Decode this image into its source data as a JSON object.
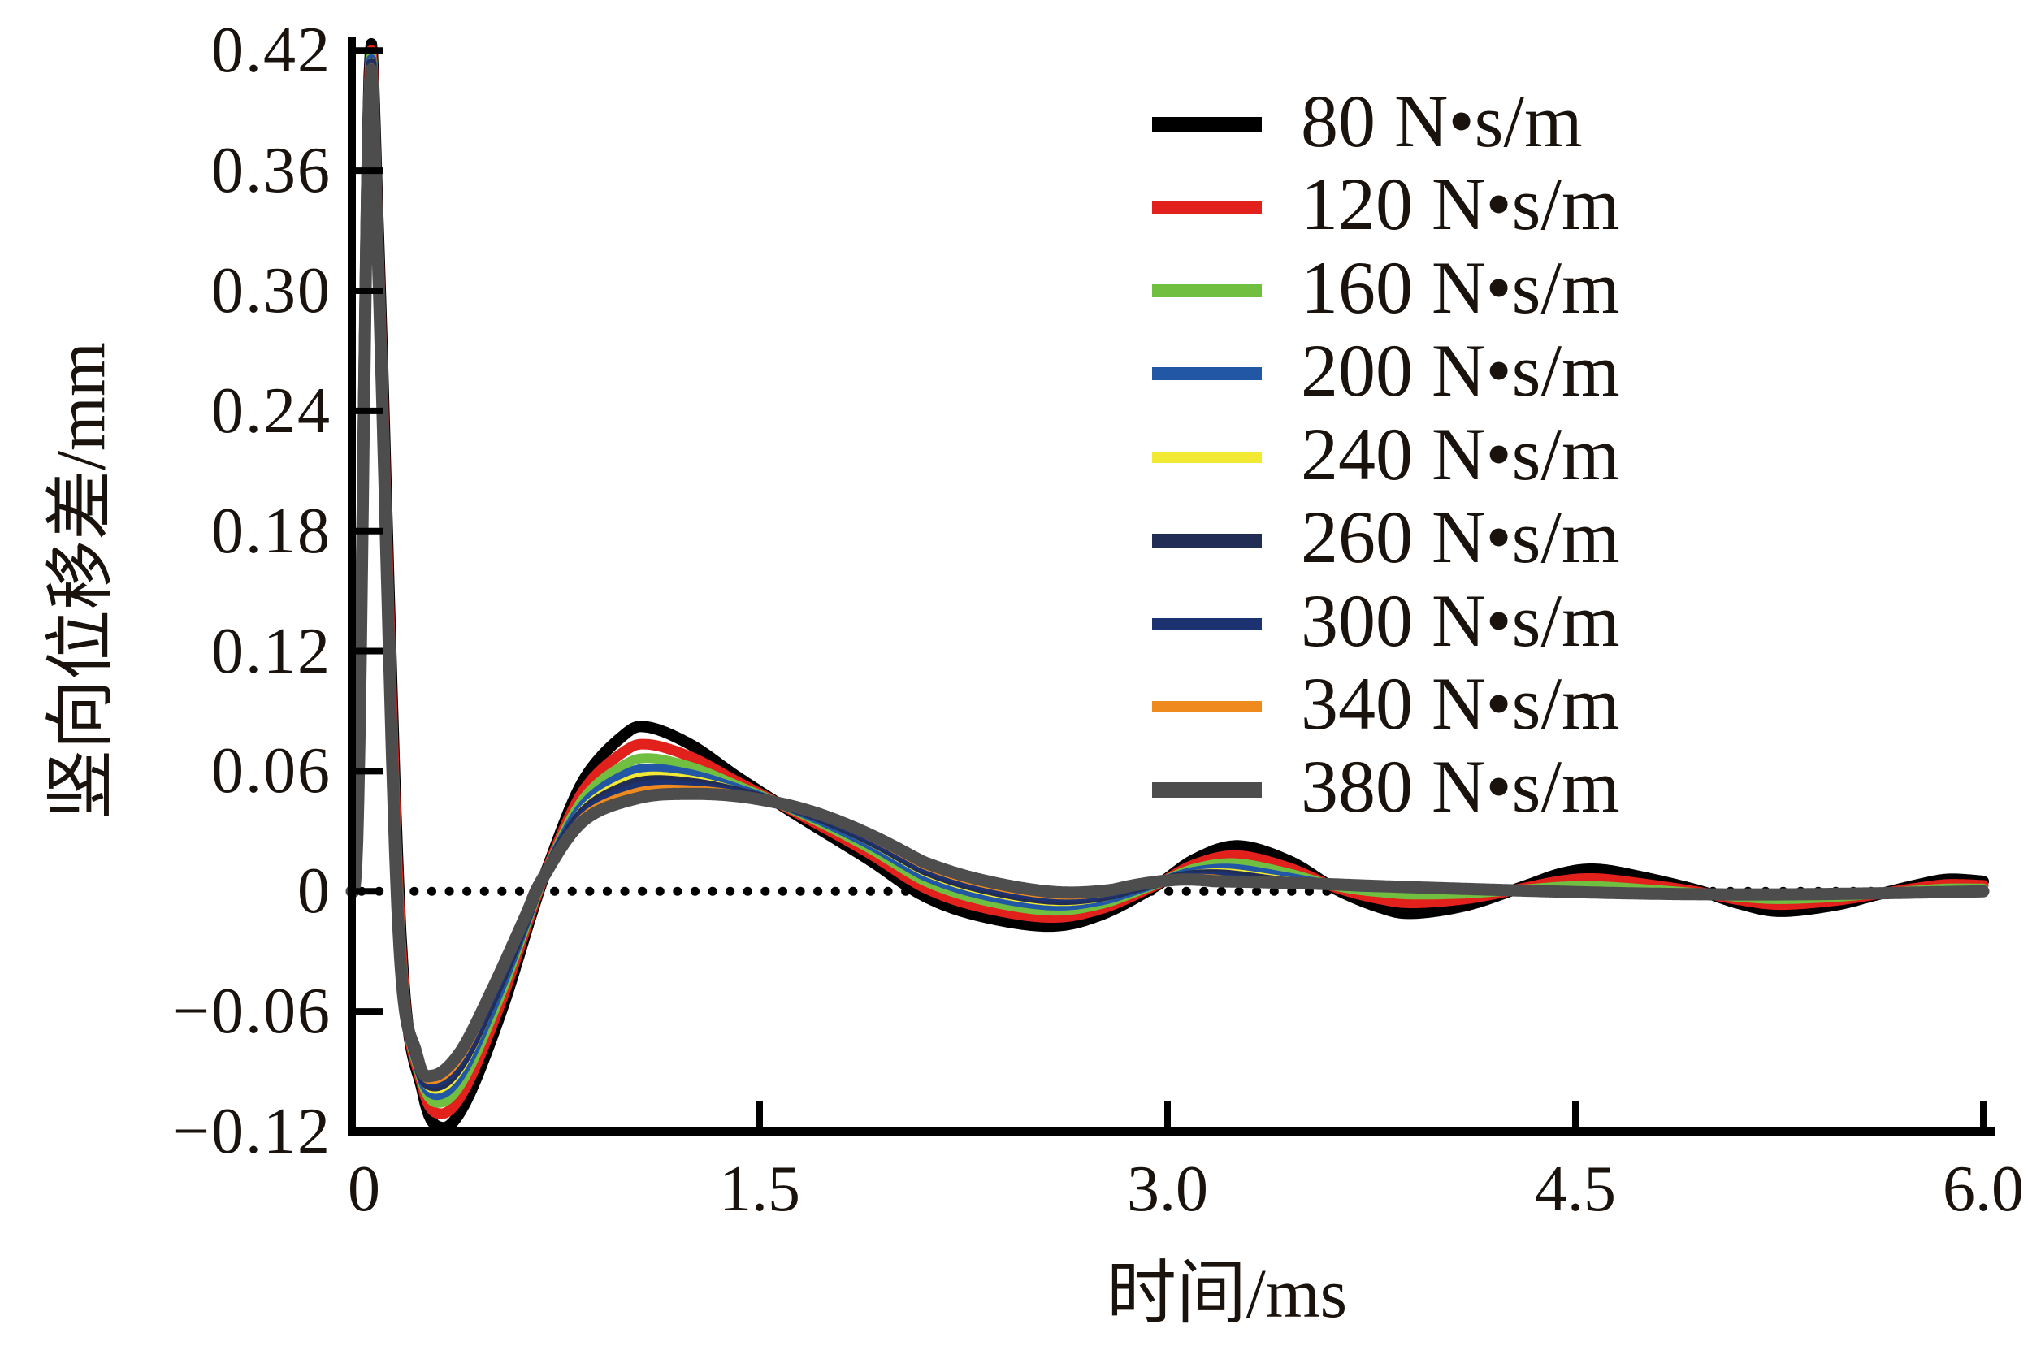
{
  "figure": {
    "background": "#ffffff",
    "text_color": "#1a120c",
    "axis_color": "#000000"
  },
  "chart_data": {
    "type": "line",
    "title": "",
    "xlabel": "时间/ms",
    "ylabel": "竖向位移差/mm",
    "xlim": [
      0,
      6
    ],
    "ylim": [
      -0.12,
      0.427
    ],
    "grid": "off",
    "zero_line": {
      "value": 0,
      "style": "dotted",
      "color": "#000000"
    },
    "x_ticks": [
      0,
      1.5,
      3.0,
      4.5,
      6.0
    ],
    "x_tick_labels": [
      "0",
      "1.5",
      "3.0",
      "4.5",
      "6.0"
    ],
    "y_ticks": [
      0.42,
      0.36,
      0.3,
      0.24,
      0.18,
      0.12,
      0.06,
      0,
      -0.06,
      -0.12
    ],
    "y_tick_labels": [
      "0.42",
      "0.36",
      "0.30",
      "0.24",
      "0.18",
      "0.12",
      "0.06",
      "0",
      "−0.06",
      "−0.12"
    ],
    "legend": {
      "position": "upper right",
      "entries": [
        {
          "label": "80 N•s/m",
          "color": "#000000"
        },
        {
          "label": "120 N•s/m",
          "color": "#e2211c"
        },
        {
          "label": "160 N•s/m",
          "color": "#70bf41"
        },
        {
          "label": "200 N•s/m",
          "color": "#2257a6"
        },
        {
          "label": "240 N•s/m",
          "color": "#f2e933"
        },
        {
          "label": "260 N•s/m",
          "color": "#222d56"
        },
        {
          "label": "300 N•s/m",
          "color": "#1d3270"
        },
        {
          "label": "340 N•s/m",
          "color": "#ef8a1e"
        },
        {
          "label": "380 N•s/m",
          "color": "#4d4d4d"
        }
      ]
    },
    "series": [
      {
        "name": "80 N•s/m",
        "damping_N_s_per_m": 80,
        "color": "#000000",
        "blend": 0.0,
        "stroke_width": 14
      },
      {
        "name": "120 N•s/m",
        "damping_N_s_per_m": 120,
        "color": "#e2211c",
        "blend": 0.25,
        "stroke_width": 13
      },
      {
        "name": "160 N•s/m",
        "damping_N_s_per_m": 160,
        "color": "#70bf41",
        "blend": 0.45,
        "stroke_width": 12
      },
      {
        "name": "200 N•s/m",
        "damping_N_s_per_m": 200,
        "color": "#2257a6",
        "blend": 0.6,
        "stroke_width": 12
      },
      {
        "name": "240 N•s/m",
        "damping_N_s_per_m": 240,
        "color": "#f2e933",
        "blend": 0.7,
        "stroke_width": 9
      },
      {
        "name": "260 N•s/m",
        "damping_N_s_per_m": 260,
        "color": "#222d56",
        "blend": 0.78,
        "stroke_width": 13
      },
      {
        "name": "300 N•s/m",
        "damping_N_s_per_m": 300,
        "color": "#1d3270",
        "blend": 0.84,
        "stroke_width": 11
      },
      {
        "name": "340 N•s/m",
        "damping_N_s_per_m": 340,
        "color": "#ef8a1e",
        "blend": 0.91,
        "stroke_width": 10
      },
      {
        "name": "380 N•s/m",
        "damping_N_s_per_m": 380,
        "color": "#4d4d4d",
        "blend": 1.0,
        "stroke_width": 15
      }
    ],
    "profiles": {
      "description": "Damped oscillation of vertical displacement difference (mm) vs time (ms). Keypoints [t_ms, mm] read from plot. Series between 80 and 380 N·s/m interpolate between the two envelope profiles with weight blend*m(t).",
      "keypoints_80": [
        [
          0,
          0
        ],
        [
          0.015,
          0.01
        ],
        [
          0.03,
          0.1
        ],
        [
          0.065,
          0.413
        ],
        [
          0.1,
          0.32
        ],
        [
          0.18,
          -0.02
        ],
        [
          0.26,
          -0.1
        ],
        [
          0.33,
          -0.118
        ],
        [
          0.42,
          -0.105
        ],
        [
          0.55,
          -0.06
        ],
        [
          0.66,
          -0.012
        ],
        [
          0.72,
          0.012
        ],
        [
          0.85,
          0.055
        ],
        [
          1.0,
          0.078
        ],
        [
          1.09,
          0.082
        ],
        [
          1.25,
          0.073
        ],
        [
          1.42,
          0.057
        ],
        [
          1.65,
          0.037
        ],
        [
          1.9,
          0.016
        ],
        [
          2.1,
          -0.002
        ],
        [
          2.3,
          -0.012
        ],
        [
          2.56,
          -0.0174
        ],
        [
          2.75,
          -0.012
        ],
        [
          2.95,
          0.002
        ],
        [
          3.1,
          0.016
        ],
        [
          3.26,
          0.0227
        ],
        [
          3.45,
          0.015
        ],
        [
          3.62,
          0.001
        ],
        [
          3.78,
          -0.008
        ],
        [
          3.9,
          -0.011
        ],
        [
          4.1,
          -0.007
        ],
        [
          4.3,
          0.002
        ],
        [
          4.45,
          0.009
        ],
        [
          4.58,
          0.011
        ],
        [
          4.75,
          0.007
        ],
        [
          4.95,
          0.0005
        ],
        [
          5.1,
          -0.006
        ],
        [
          5.25,
          -0.01
        ],
        [
          5.45,
          -0.007
        ],
        [
          5.6,
          -0.002
        ],
        [
          5.75,
          0.003
        ],
        [
          5.87,
          0.006
        ],
        [
          6.0,
          0.005
        ]
      ],
      "keypoints_380": [
        [
          0,
          0
        ],
        [
          0.015,
          0.009
        ],
        [
          0.03,
          0.09
        ],
        [
          0.065,
          0.402
        ],
        [
          0.1,
          0.3
        ],
        [
          0.17,
          -0.015
        ],
        [
          0.24,
          -0.082
        ],
        [
          0.3,
          -0.092
        ],
        [
          0.4,
          -0.08
        ],
        [
          0.52,
          -0.048
        ],
        [
          0.64,
          -0.012
        ],
        [
          0.7,
          0.006
        ],
        [
          0.85,
          0.035
        ],
        [
          1.05,
          0.0465
        ],
        [
          1.24,
          0.0487
        ],
        [
          1.45,
          0.047
        ],
        [
          1.7,
          0.04
        ],
        [
          2.0,
          0.028
        ],
        [
          2.3,
          0.016
        ],
        [
          2.6,
          0.0085
        ],
        [
          2.9,
          0.0055
        ],
        [
          3.2,
          0.005
        ],
        [
          3.5,
          0.004
        ],
        [
          3.8,
          0.0025
        ],
        [
          4.1,
          0.0012
        ],
        [
          4.4,
          0.0
        ],
        [
          4.7,
          -0.001
        ],
        [
          5.0,
          -0.0015
        ],
        [
          5.3,
          -0.0015
        ],
        [
          5.6,
          -0.001
        ],
        [
          5.8,
          -0.0005
        ],
        [
          6.0,
          0.0
        ]
      ],
      "blend_modifier_m": [
        [
          0,
          1
        ],
        [
          1.6,
          1
        ],
        [
          2.1,
          0.65
        ],
        [
          2.8,
          0.65
        ],
        [
          3.8,
          1.6
        ],
        [
          6,
          1.6
        ]
      ]
    }
  }
}
